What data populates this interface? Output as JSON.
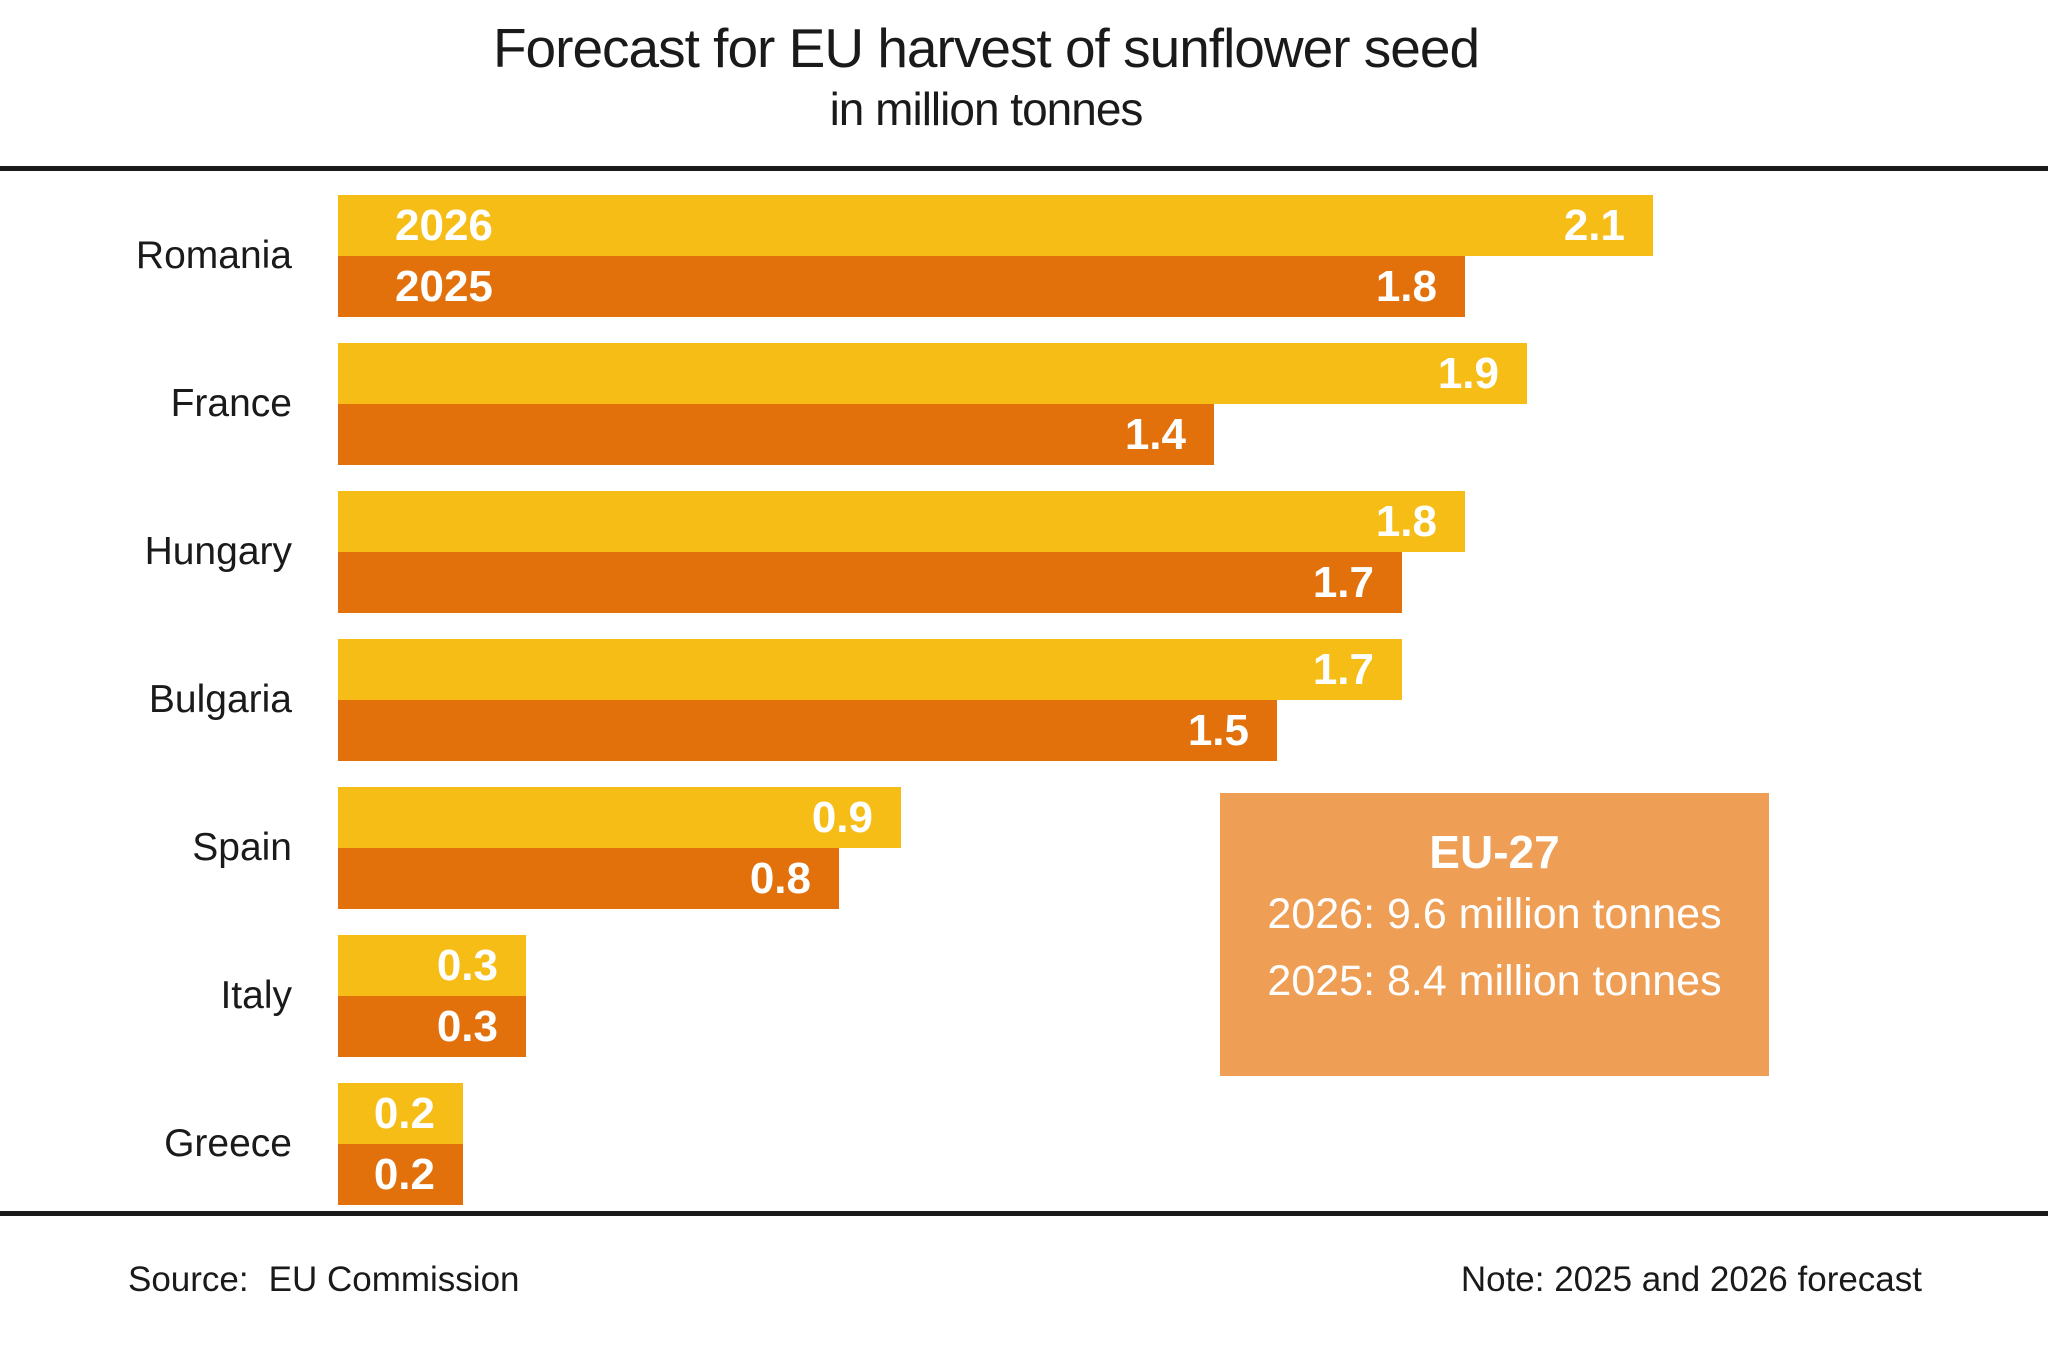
{
  "header": {
    "title": "Forecast for EU harvest of sunflower seed",
    "subtitle": "in million tonnes"
  },
  "chart_data": {
    "type": "bar",
    "orientation": "horizontal",
    "title": "Forecast for EU harvest of sunflower seed",
    "subtitle": "in million tonnes",
    "unit": "million tonnes",
    "categories": [
      "Romania",
      "France",
      "Hungary",
      "Bulgaria",
      "Spain",
      "Italy",
      "Greece"
    ],
    "series": [
      {
        "name": "2026",
        "color": "#f6bd17",
        "values": [
          2.1,
          1.9,
          1.8,
          1.7,
          0.9,
          0.3,
          0.2
        ]
      },
      {
        "name": "2025",
        "color": "#e2710c",
        "values": [
          1.8,
          1.4,
          1.7,
          1.5,
          0.8,
          0.3,
          0.2
        ]
      }
    ],
    "xlim": [
      0,
      2.2
    ],
    "grid": false,
    "axis_visible": false,
    "legend": "series year labels shown inside first bar pair",
    "value_labels": "inside right end of each bar, white bold",
    "annotation": {
      "title": "EU-27",
      "lines": [
        "2026: 9.6 million tonnes",
        "2025: 8.4 million tonnes"
      ],
      "bg_color": "#ef9e55"
    }
  },
  "footer": {
    "source_label": "Source:",
    "source_value": "EU Commission",
    "note": "Note: 2025 and 2026 forecast"
  },
  "colors": {
    "bar_2026": "#f6bd17",
    "bar_2025": "#e2710c",
    "annotation_bg": "#ef9e55",
    "text": "#1a1a1a",
    "value_label_text": "#ffffff",
    "divider": "#1a1a1a"
  }
}
